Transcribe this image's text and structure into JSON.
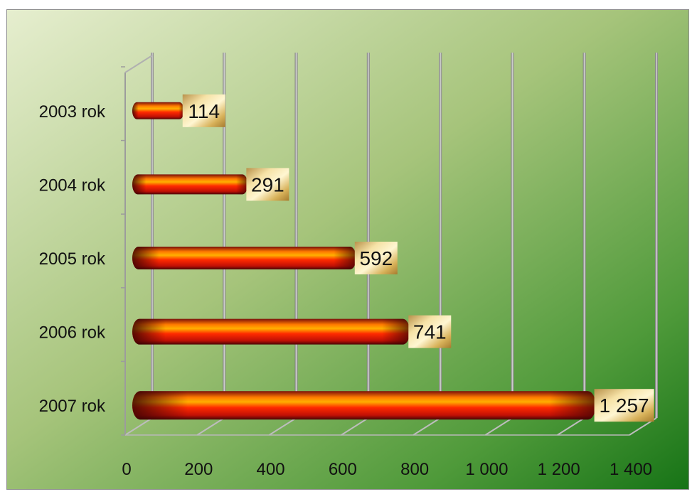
{
  "chart_data": {
    "type": "bar",
    "orientation": "horizontal",
    "categories": [
      "2003 rok",
      "2004 rok",
      "2005 rok",
      "2006 rok",
      "2007 rok"
    ],
    "values": [
      114,
      291,
      592,
      741,
      1257
    ],
    "data_labels": [
      "114",
      "291",
      "592",
      "741",
      "1 257"
    ],
    "xlim": [
      0,
      1400
    ],
    "x_ticks": [
      0,
      200,
      400,
      600,
      800,
      1000,
      1200,
      1400
    ],
    "x_tick_labels": [
      "0",
      "200",
      "400",
      "600",
      "800",
      "1 000",
      "1 200",
      "1 400"
    ],
    "grid": true,
    "legend": "none",
    "three_d": true,
    "colors": {
      "bar_main": "#ff2200",
      "bar_dark": "#5a0a0a",
      "bar_highlight": "#ffcc00",
      "label_gold_light": "#fff0b4",
      "label_gold_dark": "#c9a24e",
      "background_light": "#dfe9c4",
      "background_dark": "#1f7a1f",
      "gridline": "#9a9a9a"
    }
  }
}
